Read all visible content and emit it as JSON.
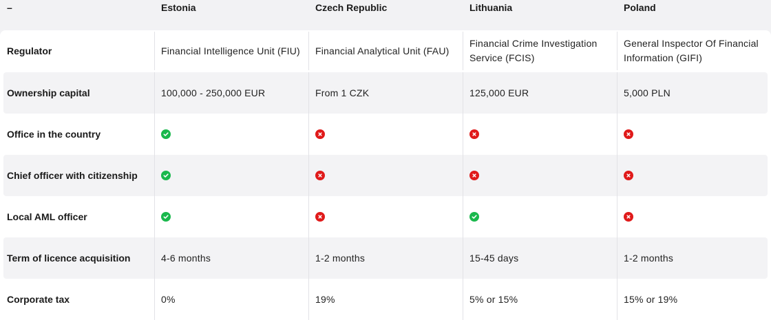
{
  "header": {
    "corner": "–",
    "countries": [
      "Estonia",
      "Czech Republic",
      "Lithuania",
      "Poland"
    ]
  },
  "colors": {
    "check": "#19b84c",
    "cross": "#e01a1a",
    "row_shade": "#f3f3f5"
  },
  "rows": [
    {
      "label": "Regulator",
      "values": [
        "Financial Intelligence Unit (FIU)",
        "Financial Analytical Unit (FAU)",
        "Financial Crime Investigation Service (FCIS)",
        "General Inspector Of Financial Information (GIFI)"
      ]
    },
    {
      "label": "Ownership capital",
      "values": [
        "100,000 - 250,000 EUR",
        "From 1 CZK",
        "125,000 EUR",
        "5,000 PLN"
      ]
    },
    {
      "label": "Office in the country",
      "icons": [
        "check-circle-icon",
        "cross-circle-icon",
        "cross-circle-icon",
        "cross-circle-icon"
      ]
    },
    {
      "label": "Chief officer with citizenship",
      "icons": [
        "check-circle-icon",
        "cross-circle-icon",
        "cross-circle-icon",
        "cross-circle-icon"
      ]
    },
    {
      "label": "Local AML officer",
      "icons": [
        "check-circle-icon",
        "cross-circle-icon",
        "check-circle-icon",
        "cross-circle-icon"
      ]
    },
    {
      "label": "Term of licence acquisition",
      "values": [
        "4-6 months",
        "1-2 months",
        "15-45 days",
        "1-2 months"
      ]
    },
    {
      "label": "Corporate tax",
      "values": [
        "0%",
        "19%",
        "5% or 15%",
        "15% or 19%"
      ]
    }
  ]
}
